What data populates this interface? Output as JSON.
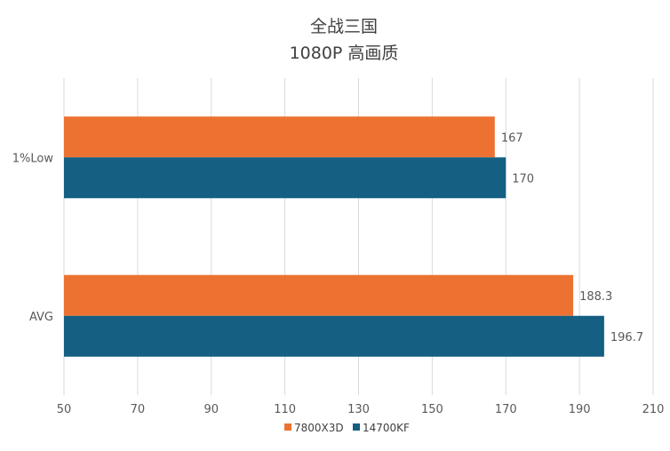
{
  "chart_data": {
    "type": "bar",
    "orientation": "horizontal",
    "title": "全战三国",
    "subtitle": "1080P 高画质",
    "categories": [
      "1%Low",
      "AVG"
    ],
    "series": [
      {
        "name": "7800X3D",
        "color": "#ED7231",
        "values": [
          167,
          188.3
        ],
        "labels": [
          "167",
          "188.3"
        ]
      },
      {
        "name": "14700KF",
        "color": "#145F82",
        "values": [
          170,
          196.7
        ],
        "labels": [
          "170",
          "196.7"
        ]
      }
    ],
    "xlim": [
      50,
      210
    ],
    "xticks": [
      "50",
      "70",
      "90",
      "110",
      "130",
      "150",
      "170",
      "190",
      "210"
    ],
    "grid": true,
    "legend_position": "bottom"
  }
}
